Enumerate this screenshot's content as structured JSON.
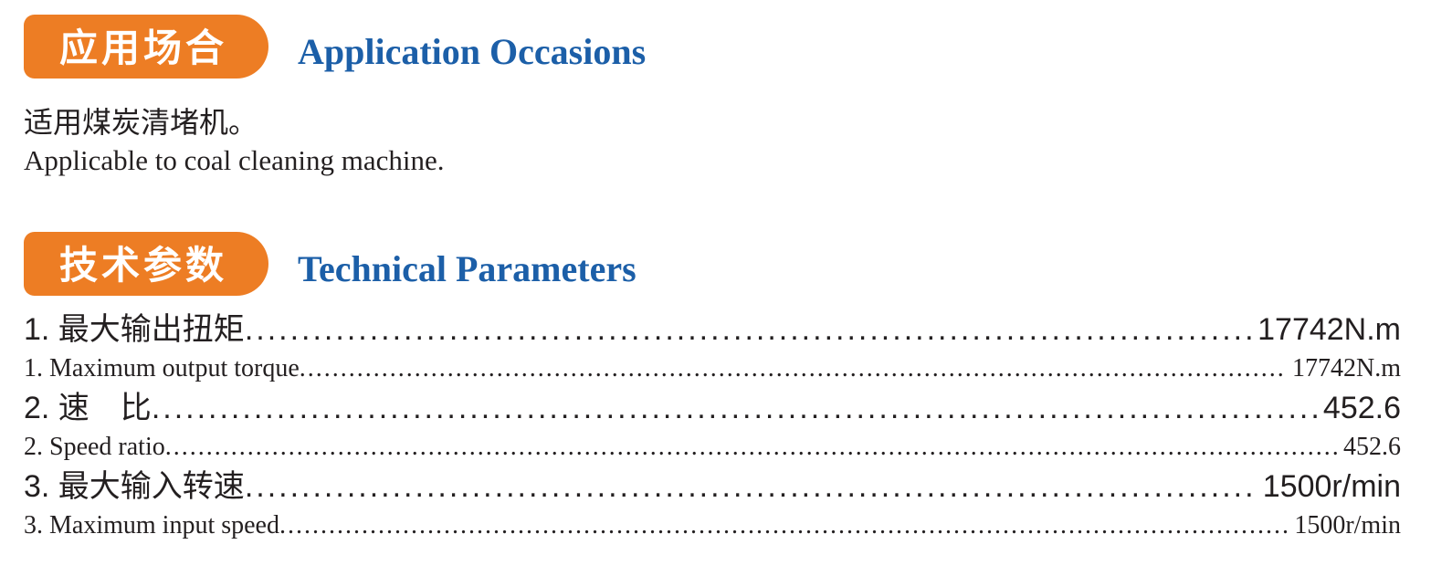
{
  "colors": {
    "badge_orange": "#ED7D24",
    "heading_blue": "#1C5FA8",
    "body_text": "#231F20"
  },
  "section_application": {
    "badge": "应用场合",
    "title": "Application Occasions",
    "body_cn": "适用煤炭清堵机。",
    "body_en": "Applicable to coal cleaning machine."
  },
  "section_parameters": {
    "badge": "技术参数",
    "title": "Technical Parameters",
    "items": [
      {
        "cn_label": "1. 最大输出扭矩",
        "cn_value": "17742N.m",
        "en_label": "1. Maximum output torque",
        "en_value": "17742N.m"
      },
      {
        "cn_label": "2. 速　比",
        "cn_value": "452.6",
        "en_label": "2. Speed ratio",
        "en_value": "452.6"
      },
      {
        "cn_label": "3. 最大输入转速",
        "cn_value": "1500r/min",
        "en_label": "3. Maximum input speed",
        "en_value": "1500r/min"
      }
    ]
  }
}
